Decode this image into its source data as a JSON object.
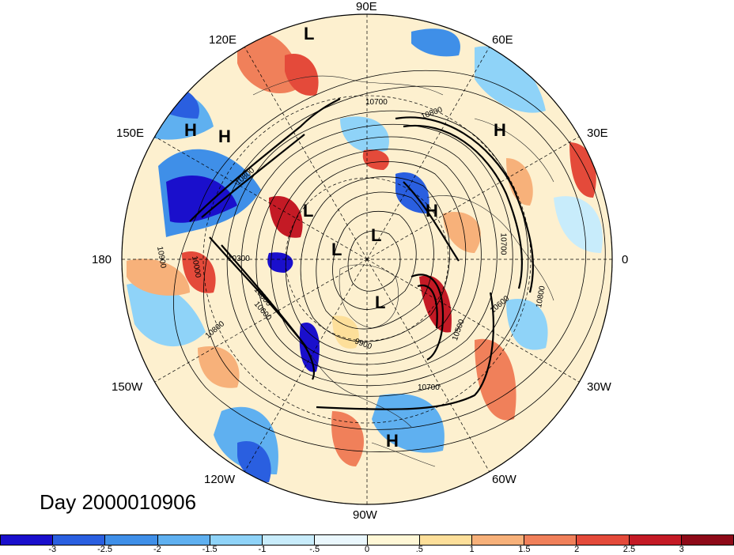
{
  "meridian_labels": [
    "90E",
    "120E",
    "60E",
    "150E",
    "30E",
    "180",
    "0",
    "150W",
    "30W",
    "120W",
    "60W",
    "90W"
  ],
  "pressure_labels": [
    "H",
    "H",
    "H",
    "H",
    "H",
    "L",
    "L",
    "L",
    "L",
    "L"
  ],
  "contour_labels": [
    "10700",
    "10800",
    "10800",
    "10300",
    "10900",
    "10000",
    "10600",
    "10800",
    "10600",
    "10500",
    "10700",
    "10600",
    "9900",
    "10700",
    "10800"
  ],
  "day_label": "Day 2000010906",
  "colorbar": {
    "tick_labels": [
      "-3",
      "-2.5",
      "-2",
      "-1.5",
      "-1",
      "-.5",
      "0",
      ".5",
      "1",
      "1.5",
      "2",
      "2.5",
      "3"
    ],
    "colors": [
      "#1a0fcc",
      "#2a5fe0",
      "#3f8fe8",
      "#5fb0f0",
      "#8fd3f8",
      "#c8ecfb",
      "#eaf7fd",
      "#fff7d6",
      "#fddf9a",
      "#f7b17a",
      "#f0805a",
      "#e44a3a",
      "#c41a25",
      "#8e0a18"
    ]
  },
  "style": {
    "ocean": "#fff5dc",
    "contour": "#000000",
    "grid": "#000000"
  }
}
